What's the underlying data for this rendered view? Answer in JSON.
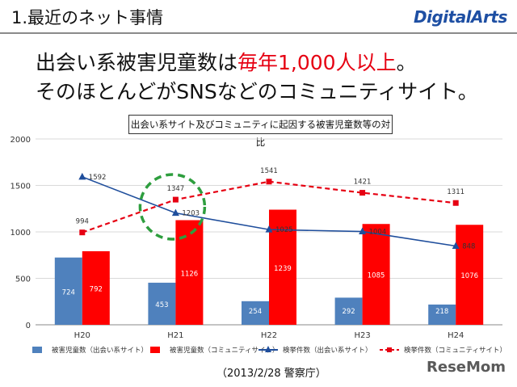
{
  "header": {
    "section_title": "1.最近のネット事情",
    "logo_text": "DigitalArts"
  },
  "headline": {
    "line1_prefix": "出会い系被害児童数は",
    "line1_highlight": "毎年1,000人以上",
    "line1_suffix": "。",
    "line2": "そのほとんどがSNSなどのコミュニティサイト。",
    "highlight_color": "#e60012"
  },
  "chart_data": {
    "type": "bar",
    "title": "出会い系サイト及びコミュニティに起因する被害児童数等の対比",
    "categories": [
      "H20",
      "H21",
      "H22",
      "H23",
      "H24"
    ],
    "ylim": [
      0,
      2000
    ],
    "yticks": [
      "0",
      "500",
      "1000",
      "1500",
      "2000"
    ],
    "grid": true,
    "legend_position": "bottom",
    "bar_series": [
      {
        "name": "被害児童数（出会い系サイト）",
        "color": "#4f81bd",
        "values": [
          724,
          453,
          254,
          292,
          218
        ]
      },
      {
        "name": "被害児童数（コミュニティサイト）",
        "color": "#ff0000",
        "values": [
          792,
          1126,
          1239,
          1085,
          1076
        ]
      }
    ],
    "line_series": [
      {
        "name": "検挙件数（出会い系サイト）",
        "color": "#1f4e9c",
        "marker": "triangle",
        "dash": false,
        "values": [
          1592,
          1203,
          1025,
          1004,
          848
        ]
      },
      {
        "name": "検挙件数（コミュニティサイト）",
        "color": "#e60012",
        "marker": "square",
        "dash": true,
        "values": [
          994,
          1347,
          1541,
          1421,
          1311
        ]
      }
    ],
    "annotation": "green dashed circle around H21 crossover"
  },
  "footer": {
    "source": "（2013/2/28 警察庁）",
    "brand": "ReseMom"
  }
}
